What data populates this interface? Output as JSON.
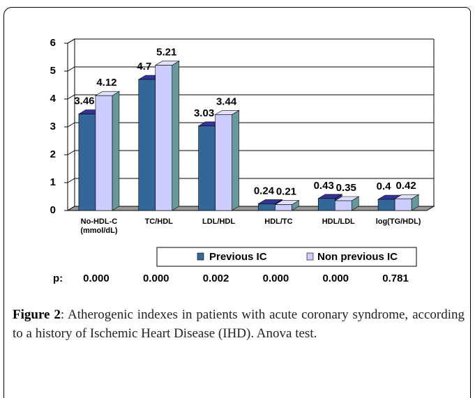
{
  "chart_data": {
    "type": "bar3d",
    "categories": [
      "No-HDL-C (mmol/dL)",
      "TC/HDL",
      "LDL/HDL",
      "HDL/TC",
      "HDL/LDL",
      "log(TG/HDL)"
    ],
    "series": [
      {
        "name": "Previous IC",
        "color": "#336699",
        "values": [
          3.46,
          4.7,
          3.03,
          0.24,
          0.43,
          0.4
        ]
      },
      {
        "name": "Non previous IC",
        "color": "#ccccff",
        "values": [
          4.12,
          5.21,
          3.44,
          0.21,
          0.35,
          0.42
        ]
      }
    ],
    "ylim": [
      0,
      6
    ],
    "yticks": [
      0,
      1,
      2,
      3,
      4,
      5,
      6
    ],
    "grid": true,
    "p_label": "p:",
    "p_values": [
      "0.000",
      "0.000",
      "0.002",
      "0.000",
      "0.000",
      "0.781"
    ]
  },
  "caption": {
    "label": "Figure 2",
    "text": ": Atherogenic indexes in patients with acute coronary syndrome, according to a history of Ischemic Heart Disease (IHD). Anova test."
  }
}
